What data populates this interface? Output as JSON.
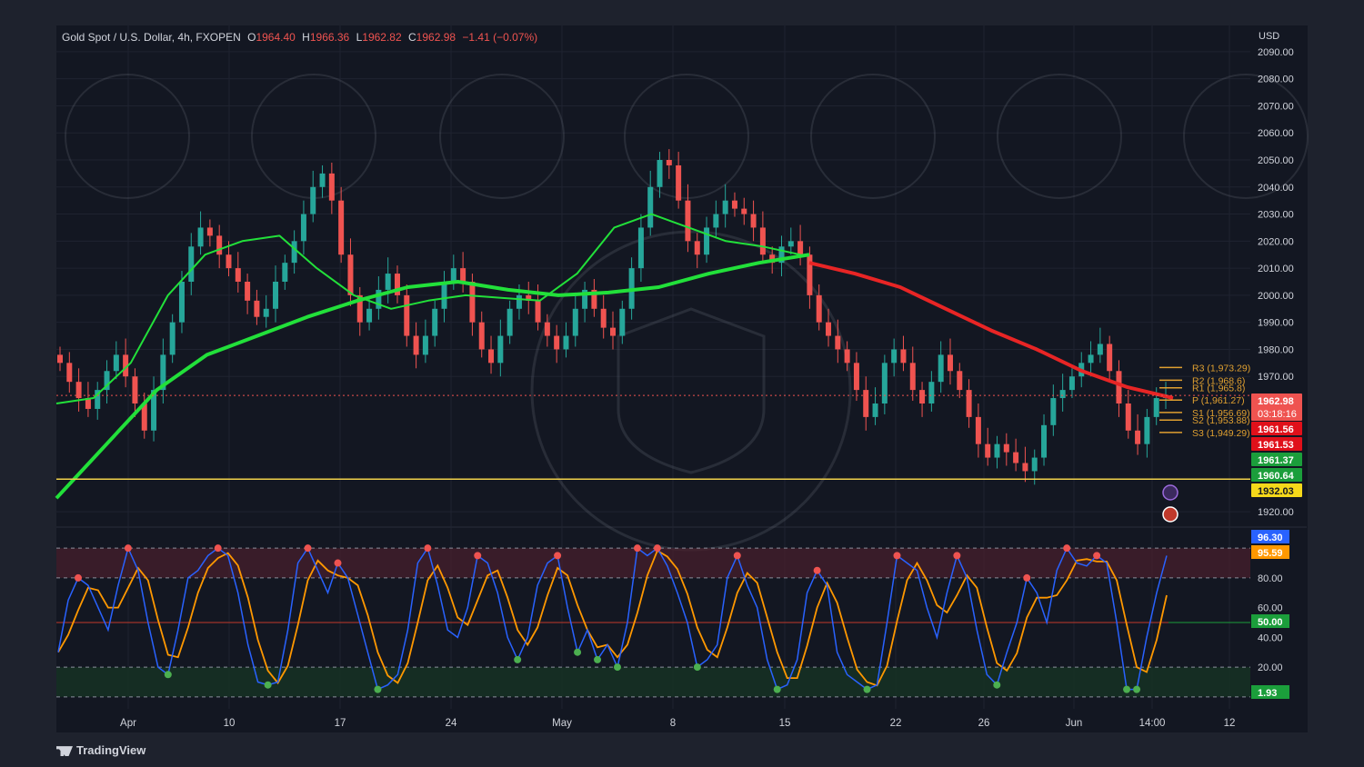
{
  "header": {
    "symbol": "Gold Spot / U.S. Dollar, 4h, FXOPEN",
    "o_label": "O",
    "o_value": "1964.40",
    "h_label": "H",
    "h_value": "1966.36",
    "l_label": "L",
    "l_value": "1962.82",
    "c_label": "C",
    "c_value": "1962.98",
    "change": "−1.41 (−0.07%)"
  },
  "currency": "USD",
  "brand": "TradingView",
  "colors": {
    "up": "#26a69a",
    "down": "#ef5350",
    "ema_green": "#22e03a",
    "ema_red": "#e82525",
    "support_line": "#f0d04a",
    "stoch_k": "#2962ff",
    "stoch_d": "#ff9800",
    "pivot": "#e0a030"
  },
  "chart_data": [
    {
      "type": "line",
      "name": "price",
      "x_tick_labels": [
        "Apr",
        "10",
        "17",
        "24",
        "May",
        "8",
        "15",
        "22",
        "26",
        "Jun",
        "14:00",
        "12"
      ],
      "y_ticks": [
        "2090.00",
        "2080.00",
        "2070.00",
        "2060.00",
        "2050.00",
        "2040.00",
        "2030.00",
        "2020.00",
        "2010.00",
        "2000.00",
        "1990.00",
        "1980.00",
        "1970.00",
        "1920.00"
      ],
      "ylim": [
        1915,
        2095
      ],
      "close_series": [
        1975,
        1968,
        1962,
        1958,
        1965,
        1972,
        1978,
        1970,
        1960,
        1950,
        1965,
        1978,
        1990,
        2005,
        2018,
        2025,
        2022,
        2015,
        2010,
        2005,
        1998,
        1992,
        1995,
        2005,
        2012,
        2020,
        2030,
        2040,
        2045,
        2035,
        2015,
        2000,
        1990,
        1995,
        2002,
        2008,
        2000,
        1985,
        1978,
        1985,
        1995,
        2005,
        2010,
        2005,
        1990,
        1980,
        1975,
        1985,
        1995,
        2000,
        1998,
        1990,
        1985,
        1980,
        1985,
        1995,
        2002,
        1995,
        1988,
        1985,
        1995,
        2010,
        2025,
        2040,
        2050,
        2048,
        2035,
        2020,
        2015,
        2025,
        2030,
        2035,
        2032,
        2030,
        2025,
        2015,
        2012,
        2018,
        2020,
        2015,
        2000,
        1990,
        1985,
        1980,
        1975,
        1965,
        1955,
        1960,
        1975,
        1980,
        1975,
        1965,
        1960,
        1968,
        1978,
        1972,
        1965,
        1955,
        1945,
        1940,
        1945,
        1942,
        1938,
        1935,
        1940,
        1952,
        1962,
        1965,
        1970,
        1975,
        1978,
        1982,
        1972,
        1960,
        1950,
        1945,
        1955,
        1962,
        1963
      ],
      "ema_fast_green": [
        1960,
        1962,
        1975,
        2000,
        2015,
        2020,
        2022,
        2010,
        2000,
        1995,
        1998,
        2000,
        1999,
        1998,
        2008,
        2025,
        2030,
        2025,
        2020,
        2018,
        2015
      ],
      "ema_slow_green": [
        1925,
        1945,
        1965,
        1978,
        1985,
        1992,
        1998,
        2003,
        2005,
        2002,
        2000,
        2001,
        2003,
        2008,
        2012,
        2015
      ],
      "ema_slow_red": [
        2012,
        2008,
        2003,
        1995,
        1987,
        1980,
        1972,
        1966,
        1962
      ],
      "levels": [
        {
          "label": "R3 (1,973.29)",
          "value": 1973.29
        },
        {
          "label": "R2 (1,968.6)",
          "value": 1968.6
        },
        {
          "label": "R1 (1,965.8)",
          "value": 1965.8
        },
        {
          "label": "P (1,961.27)",
          "value": 1961.27
        },
        {
          "label": "S1 (1,956.69)",
          "value": 1956.69
        },
        {
          "label": "S2 (1,953.88)",
          "value": 1953.88
        },
        {
          "label": "S3 (1,949.29)",
          "value": 1949.29
        }
      ],
      "support_level": 1932.03,
      "price_tags": [
        {
          "text": "1962.98",
          "sub": "03:18:16",
          "value": 1962.98,
          "color": "#ef5350"
        },
        {
          "text": "1961.56",
          "value": 1961.56,
          "color": "#e0101a"
        },
        {
          "text": "1961.53",
          "value": 1961.53,
          "color": "#e0101a"
        },
        {
          "text": "1961.37",
          "value": 1961.37,
          "color": "#1b9e3b"
        },
        {
          "text": "1960.64",
          "value": 1960.64,
          "color": "#1b9e3b"
        },
        {
          "text": "1932.03",
          "value": 1932.03,
          "color": "#f5d81a"
        }
      ]
    },
    {
      "type": "line",
      "name": "stochastic",
      "ylim": [
        -5,
        105
      ],
      "y_ticks": [
        "80.00",
        "60.00",
        "40.00",
        "20.00"
      ],
      "overbought": 80,
      "oversold": 20,
      "mid": 50,
      "k": [
        30,
        65,
        80,
        75,
        60,
        45,
        75,
        100,
        85,
        50,
        20,
        15,
        45,
        80,
        85,
        95,
        100,
        95,
        70,
        35,
        10,
        8,
        10,
        45,
        90,
        100,
        85,
        70,
        90,
        80,
        55,
        30,
        5,
        8,
        15,
        45,
        90,
        100,
        75,
        45,
        40,
        60,
        95,
        90,
        70,
        40,
        25,
        40,
        75,
        90,
        95,
        60,
        30,
        45,
        25,
        35,
        20,
        50,
        100,
        95,
        100,
        88,
        70,
        50,
        20,
        25,
        35,
        80,
        95,
        75,
        60,
        25,
        5,
        8,
        25,
        70,
        85,
        75,
        30,
        15,
        10,
        5,
        8,
        50,
        95,
        90,
        85,
        60,
        40,
        70,
        95,
        80,
        45,
        15,
        8,
        30,
        50,
        80,
        70,
        50,
        85,
        100,
        90,
        88,
        95,
        90,
        50,
        5,
        5,
        40,
        70,
        95
      ]
    }
  ],
  "stoch_tags": [
    {
      "text": "96.30",
      "value": 96.3,
      "color": "#2962ff"
    },
    {
      "text": "95.59",
      "value": 95.59,
      "color": "#ff9800"
    },
    {
      "text": "50.00",
      "value": 50,
      "color": "#1b9e3b"
    },
    {
      "text": "1.93",
      "value": 1.93,
      "color": "#1b9e3b"
    }
  ]
}
